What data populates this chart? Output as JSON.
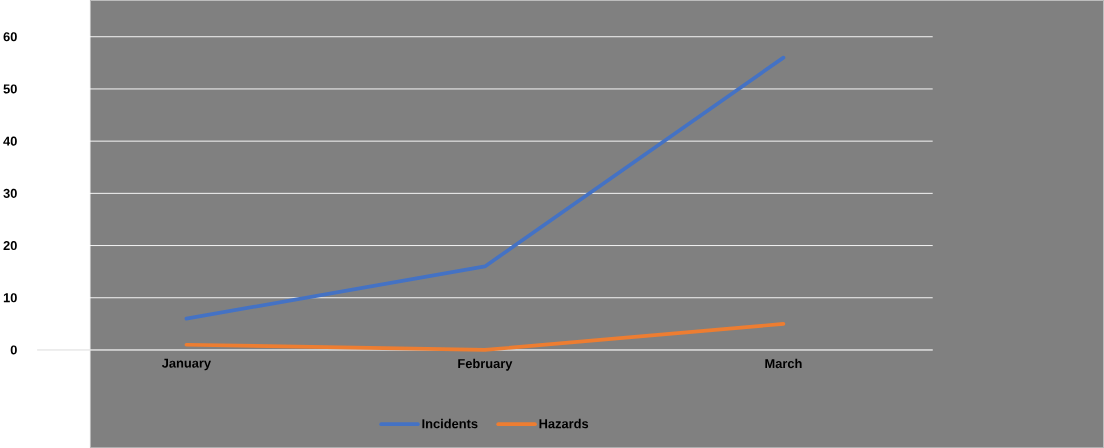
{
  "chart_data": {
    "type": "line",
    "categories": [
      "January",
      "February",
      "March"
    ],
    "series": [
      {
        "name": "Incidents",
        "color": "#4472c4",
        "values": [
          6,
          16,
          56
        ]
      },
      {
        "name": "Hazards",
        "color": "#ed7d31",
        "values": [
          1,
          0,
          5
        ]
      }
    ],
    "ylim": [
      0,
      60
    ],
    "yticks": [
      0,
      10,
      20,
      30,
      40,
      50,
      60
    ],
    "grid": "y",
    "legend": "bottom",
    "marker": "none",
    "line_style": "solid"
  }
}
